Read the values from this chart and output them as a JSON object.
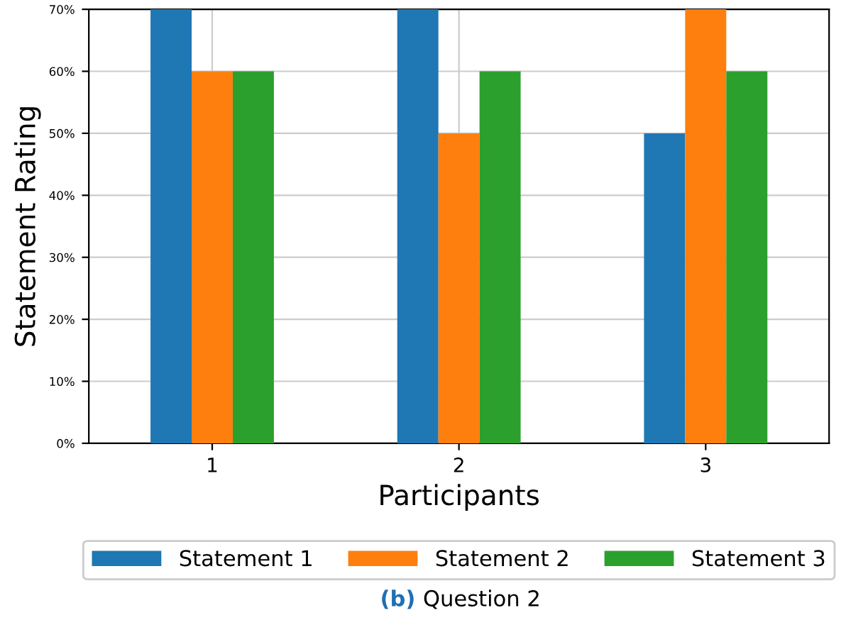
{
  "chart_data": {
    "type": "bar",
    "xlabel": "Participants",
    "ylabel": "Statement Rating",
    "categories": [
      "1",
      "2",
      "3"
    ],
    "series": [
      {
        "name": "Statement 1",
        "color": "#1f77b4",
        "values": [
          70,
          70,
          50
        ]
      },
      {
        "name": "Statement 2",
        "color": "#ff7f0e",
        "values": [
          60,
          50,
          70
        ]
      },
      {
        "name": "Statement 3",
        "color": "#2ca02c",
        "values": [
          60,
          60,
          60
        ]
      }
    ],
    "ylim": [
      0,
      70
    ],
    "yticks": [
      {
        "value": 0,
        "label": "0%"
      },
      {
        "value": 10,
        "label": "10%"
      },
      {
        "value": 20,
        "label": "20%"
      },
      {
        "value": 30,
        "label": "30%"
      },
      {
        "value": 40,
        "label": "40%"
      },
      {
        "value": 50,
        "label": "50%"
      },
      {
        "value": 60,
        "label": "60%"
      },
      {
        "value": 70,
        "label": "70%"
      }
    ],
    "grid": true,
    "legend": "bottom",
    "annotations": [
      "(b)",
      "Question 2"
    ]
  }
}
